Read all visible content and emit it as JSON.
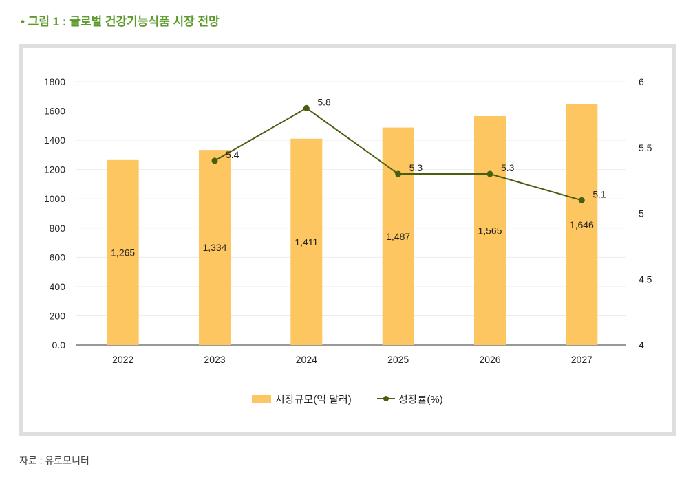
{
  "title": "• 그림 1 : 글로벌 건강기능식품 시장 전망",
  "source": "자료 : 유로모니터",
  "chart_data": {
    "type": "bar+line",
    "categories": [
      "2022",
      "2023",
      "2024",
      "2025",
      "2026",
      "2027"
    ],
    "series": [
      {
        "name": "시장규모(억 달러)",
        "type": "bar",
        "axis": "left",
        "values": [
          1265,
          1334,
          1411,
          1487,
          1565,
          1646
        ],
        "labels": [
          "1,265",
          "1,334",
          "1,411",
          "1,487",
          "1,565",
          "1,646"
        ],
        "color": "#fdc660"
      },
      {
        "name": "성장률(%)",
        "type": "line",
        "axis": "right",
        "values": [
          null,
          5.4,
          5.8,
          5.3,
          5.3,
          5.1
        ],
        "labels": [
          "",
          "5.4",
          "5.8",
          "5.3",
          "5.3",
          "5.1"
        ],
        "color": "#4a5e12"
      }
    ],
    "y_left": {
      "range": [
        0,
        1800
      ],
      "ticks": [
        "0.0",
        "200",
        "400",
        "600",
        "800",
        "1000",
        "1200",
        "1400",
        "1600",
        "1800"
      ]
    },
    "y_right": {
      "range": [
        4,
        6
      ],
      "ticks": [
        "4",
        "4.5",
        "5",
        "5.5",
        "6"
      ]
    },
    "grid": true,
    "legend": "bottom"
  }
}
